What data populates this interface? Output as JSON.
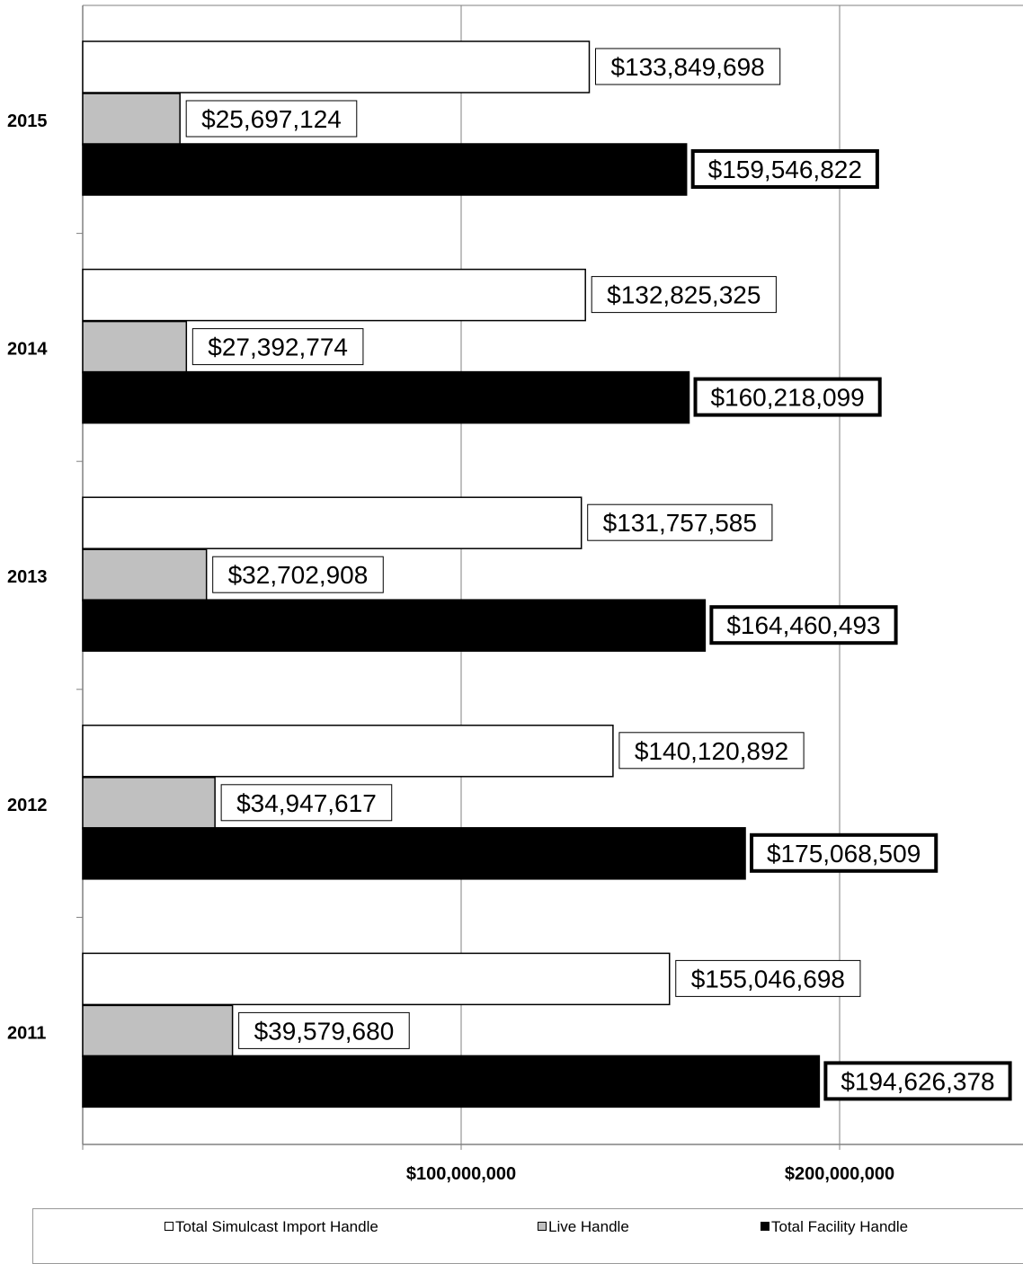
{
  "chart_data": {
    "type": "bar",
    "orientation": "horizontal",
    "categories": [
      "2015",
      "2014",
      "2013",
      "2012",
      "2011"
    ],
    "series": [
      {
        "name": "Total Simulcast Import Handle",
        "color": "#ffffff",
        "values": [
          133849698,
          132825325,
          131757585,
          140120892,
          155046698
        ],
        "labels": [
          "$133,849,698",
          "$132,825,325",
          "$131,757,585",
          "$140,120,892",
          "$155,046,698"
        ]
      },
      {
        "name": "Live Handle",
        "color": "#c0c0c0",
        "values": [
          25697124,
          27392774,
          32702908,
          34947617,
          39579680
        ],
        "labels": [
          "$25,697,124",
          "$27,392,774",
          "$32,702,908",
          "$34,947,617",
          "$39,579,680"
        ]
      },
      {
        "name": "Total Facility Handle",
        "color": "#000000",
        "values": [
          159546822,
          160218099,
          164460493,
          175068509,
          194626378
        ],
        "labels": [
          "$159,546,822",
          "$160,218,099",
          "$164,460,493",
          "$175,068,509",
          "$194,626,378"
        ]
      }
    ],
    "xlim": [
      0,
      250000000
    ],
    "x_ticks": [
      100000000,
      200000000
    ],
    "x_tick_labels": [
      "$100,000,000",
      "$200,000,000"
    ],
    "grid": true,
    "legend_position": "bottom"
  },
  "legend": {
    "items": [
      {
        "label": "Total Simulcast Import Handle",
        "color": "#ffffff"
      },
      {
        "label": "Live Handle",
        "color": "#c0c0c0"
      },
      {
        "label": "Total Facility Handle",
        "color": "#000000"
      }
    ]
  }
}
